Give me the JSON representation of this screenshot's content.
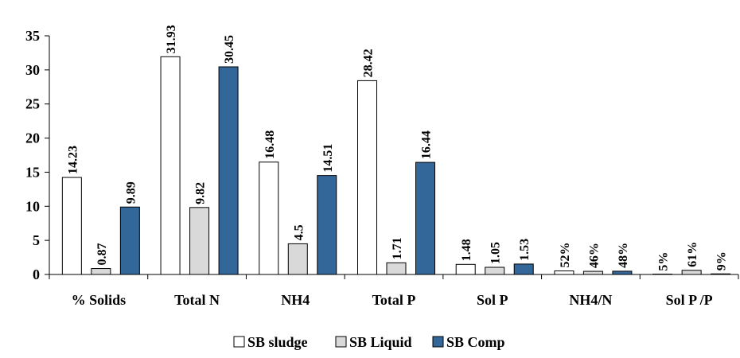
{
  "chart_data": {
    "type": "bar",
    "categories": [
      "% Solids",
      "Total N",
      "NH4",
      "Total P",
      "Sol P",
      "NH4/N",
      "Sol P /P"
    ],
    "series": [
      {
        "name": "SB sludge",
        "color": "#ffffff",
        "values": [
          14.23,
          31.93,
          16.48,
          28.42,
          1.48,
          0.52,
          0.05
        ],
        "value_labels": [
          null,
          null,
          null,
          null,
          null,
          "52%",
          "5%"
        ]
      },
      {
        "name": "SB Liquid",
        "color": "#d9d9d9",
        "values": [
          0.87,
          9.82,
          4.5,
          1.71,
          1.05,
          0.46,
          0.61
        ],
        "value_labels": [
          null,
          null,
          null,
          null,
          null,
          "46%",
          "61%"
        ]
      },
      {
        "name": "SB Comp",
        "color": "#336699",
        "values": [
          9.89,
          30.45,
          14.51,
          16.44,
          1.53,
          0.48,
          0.09
        ],
        "value_labels": [
          null,
          null,
          null,
          null,
          null,
          "48%",
          "9%"
        ]
      }
    ],
    "ylim": [
      0,
      35
    ],
    "yticks": [
      0,
      5,
      10,
      15,
      20,
      25,
      30,
      35
    ],
    "grid": false,
    "legend": "bottom"
  }
}
